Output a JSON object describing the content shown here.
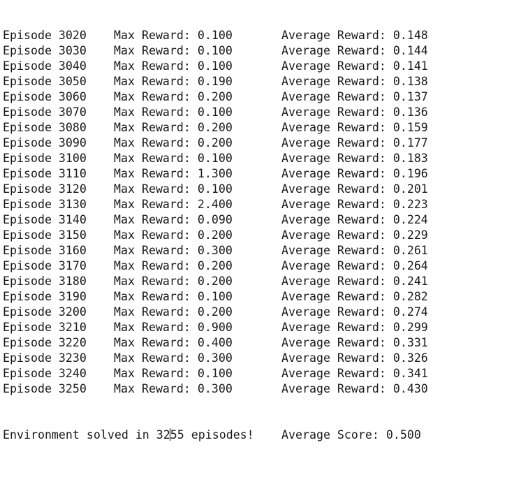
{
  "log": {
    "rows": [
      {
        "episode": "Episode 3020",
        "max_reward": "Max Reward: 0.100",
        "avg_reward": "Average Reward: 0.148"
      },
      {
        "episode": "Episode 3030",
        "max_reward": "Max Reward: 0.100",
        "avg_reward": "Average Reward: 0.144"
      },
      {
        "episode": "Episode 3040",
        "max_reward": "Max Reward: 0.100",
        "avg_reward": "Average Reward: 0.141"
      },
      {
        "episode": "Episode 3050",
        "max_reward": "Max Reward: 0.190",
        "avg_reward": "Average Reward: 0.138"
      },
      {
        "episode": "Episode 3060",
        "max_reward": "Max Reward: 0.200",
        "avg_reward": "Average Reward: 0.137"
      },
      {
        "episode": "Episode 3070",
        "max_reward": "Max Reward: 0.100",
        "avg_reward": "Average Reward: 0.136"
      },
      {
        "episode": "Episode 3080",
        "max_reward": "Max Reward: 0.200",
        "avg_reward": "Average Reward: 0.159"
      },
      {
        "episode": "Episode 3090",
        "max_reward": "Max Reward: 0.200",
        "avg_reward": "Average Reward: 0.177"
      },
      {
        "episode": "Episode 3100",
        "max_reward": "Max Reward: 0.100",
        "avg_reward": "Average Reward: 0.183"
      },
      {
        "episode": "Episode 3110",
        "max_reward": "Max Reward: 1.300",
        "avg_reward": "Average Reward: 0.196"
      },
      {
        "episode": "Episode 3120",
        "max_reward": "Max Reward: 0.100",
        "avg_reward": "Average Reward: 0.201"
      },
      {
        "episode": "Episode 3130",
        "max_reward": "Max Reward: 2.400",
        "avg_reward": "Average Reward: 0.223"
      },
      {
        "episode": "Episode 3140",
        "max_reward": "Max Reward: 0.090",
        "avg_reward": "Average Reward: 0.224"
      },
      {
        "episode": "Episode 3150",
        "max_reward": "Max Reward: 0.200",
        "avg_reward": "Average Reward: 0.229"
      },
      {
        "episode": "Episode 3160",
        "max_reward": "Max Reward: 0.300",
        "avg_reward": "Average Reward: 0.261"
      },
      {
        "episode": "Episode 3170",
        "max_reward": "Max Reward: 0.200",
        "avg_reward": "Average Reward: 0.264"
      },
      {
        "episode": "Episode 3180",
        "max_reward": "Max Reward: 0.200",
        "avg_reward": "Average Reward: 0.241"
      },
      {
        "episode": "Episode 3190",
        "max_reward": "Max Reward: 0.100",
        "avg_reward": "Average Reward: 0.282"
      },
      {
        "episode": "Episode 3200",
        "max_reward": "Max Reward: 0.200",
        "avg_reward": "Average Reward: 0.274"
      },
      {
        "episode": "Episode 3210",
        "max_reward": "Max Reward: 0.900",
        "avg_reward": "Average Reward: 0.299"
      },
      {
        "episode": "Episode 3220",
        "max_reward": "Max Reward: 0.400",
        "avg_reward": "Average Reward: 0.331"
      },
      {
        "episode": "Episode 3230",
        "max_reward": "Max Reward: 0.300",
        "avg_reward": "Average Reward: 0.326"
      },
      {
        "episode": "Episode 3240",
        "max_reward": "Max Reward: 0.100",
        "avg_reward": "Average Reward: 0.341"
      },
      {
        "episode": "Episode 3250",
        "max_reward": "Max Reward: 0.300",
        "avg_reward": "Average Reward: 0.430"
      }
    ],
    "final": {
      "solved_prefix": "Environment solved in 32",
      "solved_suffix": "55 episodes!",
      "avg_score": "Average Score: 0.500"
    }
  }
}
